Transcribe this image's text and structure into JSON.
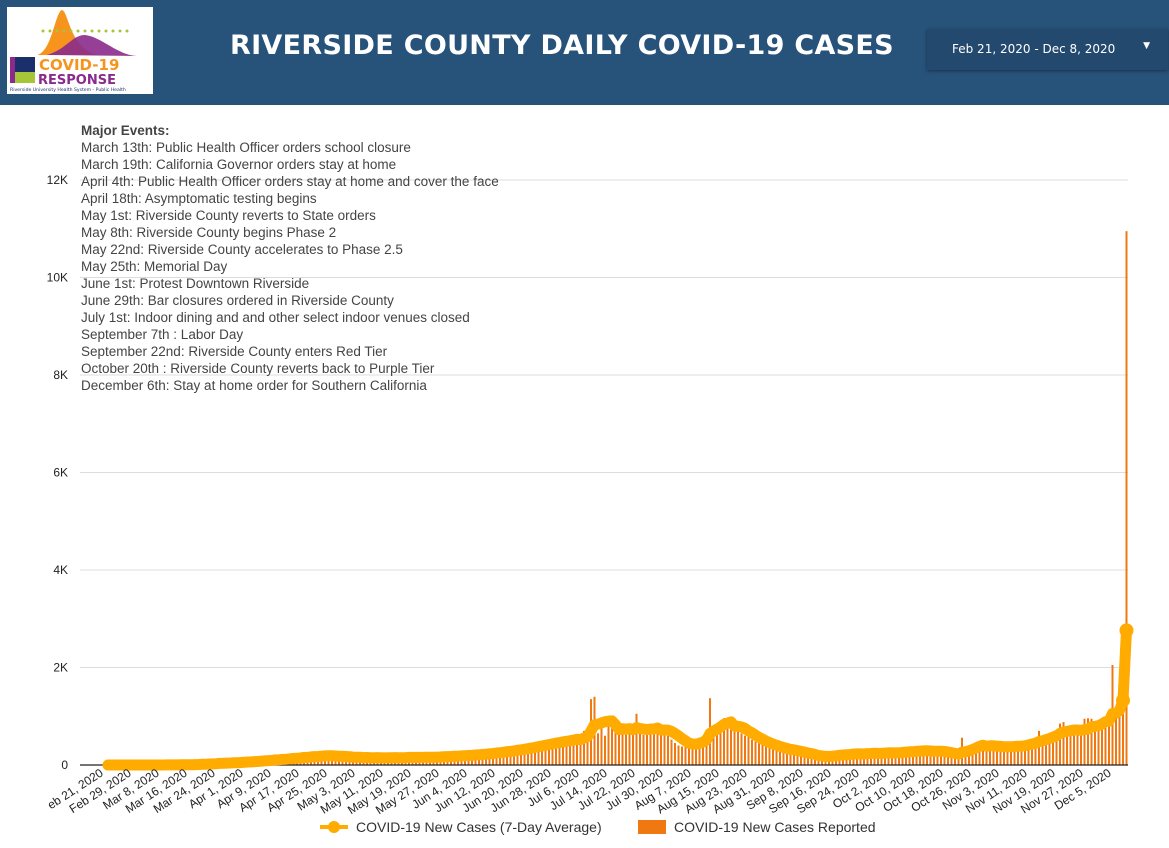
{
  "header": {
    "title": "RIVERSIDE COUNTY DAILY COVID-19 CASES",
    "logo": {
      "line1": "COVID-19",
      "line2": "RESPONSE",
      "line3": "Riverside University Health System - Public Health"
    },
    "date_range": "Feb 21, 2020 - Dec 8, 2020",
    "date_range_icon": "caret-down-icon",
    "color": "#27527a"
  },
  "events": {
    "heading": "Major Events:",
    "items": [
      "March 13th: Public Health Officer orders school closure",
      "March 19th: California Governor orders stay at home",
      "April 4th: Public Health Officer orders stay at home and cover the face",
      "April 18th: Asymptomatic testing begins",
      "May 1st: Riverside County reverts to State orders",
      "May 8th: Riverside County begins Phase 2",
      "May 22nd: Riverside County accelerates to Phase 2.5",
      "May 25th: Memorial Day",
      "June 1st: Protest Downtown Riverside",
      "June 29th: Bar closures ordered in Riverside County",
      "July 1st: Indoor dining and and other select indoor venues closed",
      "September 7th : Labor Day",
      "September 22nd: Riverside County enters Red Tier",
      "October 20th : Riverside County reverts back to Purple Tier",
      "December 6th: Stay at home order for Southern California"
    ]
  },
  "chart_data": {
    "type": "bar+line",
    "x_start": "2020-02-21",
    "x_end": "2020-12-08",
    "ylim": [
      0,
      12000
    ],
    "yticks": [
      0,
      2000,
      4000,
      6000,
      8000,
      10000,
      12000
    ],
    "ytick_labels": [
      "0",
      "2K",
      "4K",
      "6K",
      "8K",
      "10K",
      "12K"
    ],
    "xtick_labels": [
      "eb 21, 2020",
      "Feb 29, 2020",
      "Mar 8, 2020",
      "Mar 16, 2020",
      "Mar 24, 2020",
      "Apr 1, 2020",
      "Apr 9, 2020",
      "Apr 17, 2020",
      "Apr 25, 2020",
      "May 3, 2020",
      "May 11, 2020",
      "May 19, 2020",
      "May 27, 2020",
      "Jun 4, 2020",
      "Jun 12, 2020",
      "Jun 20, 2020",
      "Jun 28, 2020",
      "Jul 6, 2020",
      "Jul 14, 2020",
      "Jul 22, 2020",
      "Jul 30, 2020",
      "Aug 7, 2020",
      "Aug 15, 2020",
      "Aug 23, 2020",
      "Aug 31, 2020",
      "Sep 8, 2020",
      "Sep 16, 2020",
      "Sep 24, 2020",
      "Oct 2, 2020",
      "Oct 10, 2020",
      "Oct 18, 2020",
      "Oct 26, 2020",
      "Nov 3, 2020",
      "Nov 11, 2020",
      "Nov 19, 2020",
      "Nov 27, 2020",
      "Dec 5, 2020"
    ],
    "grid": true,
    "legend_position": "bottom",
    "series": [
      {
        "name": "COVID-19 New Cases (7-Day Average)",
        "type": "line",
        "color": "#ffab00",
        "method": "7-day average of reported cases"
      },
      {
        "name": "COVID-19 New Cases Reported",
        "type": "bar",
        "color": "#f07810",
        "values": [
          0,
          0,
          0,
          0,
          0,
          0,
          0,
          0,
          1,
          0,
          0,
          0,
          1,
          0,
          2,
          1,
          3,
          2,
          4,
          5,
          3,
          6,
          8,
          10,
          12,
          15,
          20,
          25,
          30,
          28,
          35,
          40,
          45,
          38,
          50,
          55,
          60,
          48,
          62,
          70,
          80,
          75,
          90,
          85,
          100,
          110,
          95,
          120,
          130,
          115,
          140,
          125,
          150,
          160,
          145,
          170,
          180,
          165,
          190,
          200,
          175,
          185,
          210,
          190,
          170,
          160,
          180,
          150,
          165,
          170,
          140,
          150,
          160,
          130,
          155,
          145,
          170,
          150,
          140,
          135,
          160,
          150,
          155,
          165,
          140,
          150,
          170,
          160,
          155,
          145,
          175,
          160,
          150,
          180,
          165,
          170,
          185,
          190,
          175,
          200,
          180,
          210,
          190,
          220,
          200,
          230,
          240,
          215,
          250,
          260,
          245,
          280,
          270,
          300,
          310,
          290,
          320,
          350,
          330,
          360,
          380,
          400,
          390,
          420,
          450,
          430,
          460,
          480,
          500,
          470,
          520,
          540,
          500,
          560,
          600,
          450,
          700,
          720,
          1350,
          1400,
          650,
          780,
          600,
          800,
          750,
          820,
          700,
          760,
          680,
          720,
          640,
          1050,
          680,
          620,
          700,
          760,
          720,
          780,
          750,
          700,
          600,
          520,
          450,
          400,
          380,
          420,
          360,
          480,
          500,
          560,
          600,
          650,
          1370,
          700,
          760,
          800,
          960,
          780,
          820,
          750,
          700,
          650,
          600,
          580,
          520,
          480,
          450,
          420,
          400,
          380,
          360,
          340,
          320,
          300,
          280,
          260,
          320,
          250,
          240,
          200,
          180,
          170,
          160,
          150,
          200,
          180,
          190,
          210,
          220,
          240,
          200,
          230,
          210,
          250,
          240,
          220,
          230,
          260,
          240,
          250,
          230,
          240,
          260,
          270,
          250,
          240,
          260,
          280,
          290,
          310,
          270,
          300,
          280,
          290,
          300,
          260,
          280,
          270,
          300,
          240,
          220,
          200,
          150,
          180,
          560,
          350,
          380,
          400,
          420,
          380,
          350,
          400,
          420,
          390,
          350,
          380,
          330,
          350,
          400,
          450,
          420,
          380,
          430,
          460,
          480,
          500,
          700,
          520,
          550,
          600,
          650,
          680,
          850,
          880,
          620,
          640,
          700,
          660,
          620,
          950,
          960,
          950,
          700,
          800,
          900,
          950,
          1050,
          2050,
          980,
          1100,
          2250,
          10950
        ]
      }
    ]
  }
}
